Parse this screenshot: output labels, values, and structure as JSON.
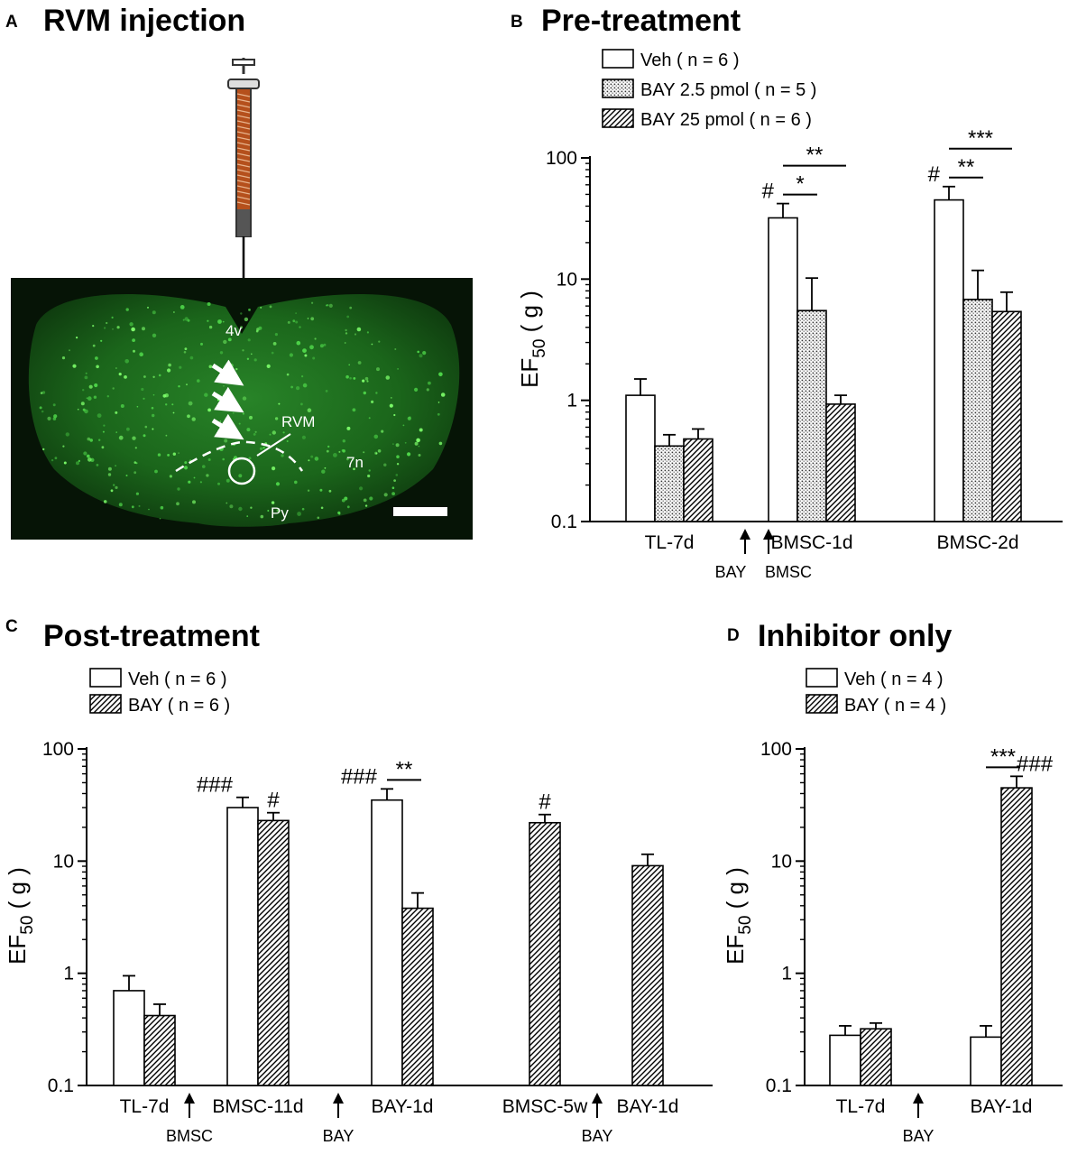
{
  "panels": {
    "A": {
      "label": "A",
      "title": "RVM injection",
      "brain_labels": {
        "ventricle": "4v",
        "rvm": "RVM",
        "nucleus": "7n",
        "pyramid": "Py"
      }
    },
    "B": {
      "label": "B",
      "title": "Pre-treatment"
    },
    "C": {
      "label": "C",
      "title": "Post-treatment"
    },
    "D": {
      "label": "D",
      "title": "Inhibitor only"
    }
  },
  "colors": {
    "bar_stroke": "#000000",
    "bar_fill": "#ffffff",
    "brain_bg": "#061406",
    "brain_tissue": "#1f7a1f",
    "syringe_body": "#b5501c"
  },
  "chart_data": [
    {
      "id": "B",
      "type": "bar",
      "title": "Pre-treatment",
      "ylabel_main": "EF",
      "ylabel_sub": "50",
      "ylabel_unit": "( g )",
      "yscale": "log",
      "ylim": [
        0.1,
        100
      ],
      "yticks": [
        "0.1",
        "1",
        "10",
        "100"
      ],
      "legend_position": "top-left",
      "legend": [
        {
          "label": "Veh ( n = 6 )",
          "pattern": "open"
        },
        {
          "label": "BAY 2.5 pmol ( n = 5 )",
          "pattern": "dots"
        },
        {
          "label": "BAY 25 pmol ( n = 6 )",
          "pattern": "hatch"
        }
      ],
      "categories": [
        "TL-7d",
        "BMSC-1d",
        "BMSC-2d"
      ],
      "series": [
        {
          "name": "Veh ( n = 6 )",
          "pattern": "open",
          "values": [
            1.1,
            32,
            45
          ],
          "errors": [
            1.5,
            42,
            58
          ],
          "marks": [
            "",
            "#",
            "#"
          ]
        },
        {
          "name": "BAY 2.5 pmol ( n = 5 )",
          "pattern": "dots",
          "values": [
            0.42,
            5.5,
            6.8
          ],
          "errors": [
            0.52,
            10.2,
            11.8
          ],
          "marks": [
            "",
            "",
            ""
          ]
        },
        {
          "name": "BAY 25 pmol ( n = 6 )",
          "pattern": "hatch",
          "values": [
            0.48,
            0.93,
            5.4
          ],
          "errors": [
            0.58,
            1.1,
            7.8
          ],
          "marks": [
            "",
            "",
            ""
          ]
        }
      ],
      "arrows": [
        "BAY",
        "BMSC"
      ],
      "significance": [
        {
          "label": "*",
          "category": "BMSC-1d",
          "from": 0,
          "to": 1
        },
        {
          "label": "**",
          "category": "BMSC-1d",
          "from": 0,
          "to": 2
        },
        {
          "label": "**",
          "category": "BMSC-2d",
          "from": 0,
          "to": 1
        },
        {
          "label": "***",
          "category": "BMSC-2d",
          "from": 0,
          "to": 2
        }
      ]
    },
    {
      "id": "C",
      "type": "bar",
      "title": "Post-treatment",
      "ylabel_main": "EF",
      "ylabel_sub": "50",
      "ylabel_unit": "( g )",
      "yscale": "log",
      "ylim": [
        0.1,
        100
      ],
      "yticks": [
        "0.1",
        "1",
        "10",
        "100"
      ],
      "legend_position": "top-left",
      "legend": [
        {
          "label": "Veh ( n = 6 )",
          "pattern": "open"
        },
        {
          "label": "BAY ( n = 6 )",
          "pattern": "hatch"
        }
      ],
      "categories": [
        "TL-7d",
        "BMSC-11d",
        "BAY-1d",
        "BMSC-5w",
        "BAY-1d"
      ],
      "series": [
        {
          "name": "Veh ( n = 6 )",
          "pattern": "open",
          "values": [
            0.7,
            30,
            35,
            null,
            null
          ],
          "errors": [
            0.95,
            37,
            44,
            null,
            null
          ],
          "marks": [
            "",
            "###",
            "###",
            "",
            ""
          ]
        },
        {
          "name": "BAY ( n = 6 )",
          "pattern": "hatch",
          "values": [
            0.42,
            23,
            3.8,
            22,
            9.1
          ],
          "errors": [
            0.53,
            27,
            5.2,
            26,
            11.5
          ],
          "marks": [
            "",
            "#",
            "",
            "#",
            ""
          ]
        }
      ],
      "arrows": [
        "BMSC",
        "BAY",
        "BAY"
      ],
      "significance": [
        {
          "label": "**",
          "category": "BAY-1d",
          "from": 0,
          "to": 1
        }
      ]
    },
    {
      "id": "D",
      "type": "bar",
      "title": "Inhibitor only",
      "ylabel_main": "EF",
      "ylabel_sub": "50",
      "ylabel_unit": "( g )",
      "yscale": "log",
      "ylim": [
        0.1,
        100
      ],
      "yticks": [
        "0.1",
        "1",
        "10",
        "100"
      ],
      "legend_position": "top-left",
      "legend": [
        {
          "label": "Veh ( n = 4 )",
          "pattern": "open"
        },
        {
          "label": "BAY ( n = 4 )",
          "pattern": "hatch"
        }
      ],
      "categories": [
        "TL-7d",
        "BAY-1d"
      ],
      "series": [
        {
          "name": "Veh ( n = 4 )",
          "pattern": "open",
          "values": [
            0.28,
            0.27
          ],
          "errors": [
            0.34,
            0.34
          ],
          "marks": [
            "",
            ""
          ]
        },
        {
          "name": "BAY ( n = 4 )",
          "pattern": "hatch",
          "values": [
            0.32,
            45
          ],
          "errors": [
            0.36,
            57
          ],
          "marks": [
            "",
            "###"
          ]
        }
      ],
      "arrows": [
        "BAY"
      ],
      "significance": [
        {
          "label": "***",
          "category": "BAY-1d",
          "from": 0,
          "to": 1
        }
      ]
    }
  ]
}
